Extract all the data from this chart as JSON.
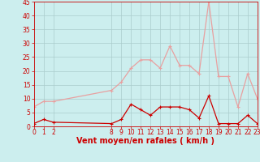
{
  "hours": [
    0,
    1,
    2,
    8,
    9,
    10,
    11,
    12,
    13,
    14,
    15,
    16,
    17,
    18,
    19,
    20,
    21,
    22,
    23
  ],
  "vent_moyen": [
    1,
    2.5,
    1.5,
    1,
    2.5,
    8,
    6,
    4,
    7,
    7,
    7,
    6,
    3,
    11,
    1,
    1,
    1,
    4,
    1
  ],
  "vent_rafales": [
    7,
    9,
    9,
    13,
    16,
    21,
    24,
    24,
    21,
    29,
    22,
    22,
    19,
    45,
    18,
    18,
    7,
    19,
    10
  ],
  "xlabel": "Vent moyen/en rafales ( km/h )",
  "xlim_min": 0,
  "xlim_max": 23,
  "ylim_min": 0,
  "ylim_max": 45,
  "yticks": [
    0,
    5,
    10,
    15,
    20,
    25,
    30,
    35,
    40,
    45
  ],
  "xtick_positions": [
    0,
    1,
    2,
    8,
    9,
    10,
    11,
    12,
    13,
    14,
    15,
    16,
    17,
    18,
    19,
    20,
    21,
    22,
    23
  ],
  "xtick_labels": [
    "0",
    "1",
    "2",
    "8",
    "9",
    "10",
    "11",
    "12",
    "13",
    "14",
    "15",
    "16",
    "17",
    "18",
    "19",
    "20",
    "21",
    "22",
    "23"
  ],
  "color_moyen": "#cc0000",
  "color_rafales": "#e8a0a0",
  "bg_color": "#cceeee",
  "grid_color": "#aacccc",
  "text_color": "#cc0000",
  "marker_size": 2.5,
  "linewidth": 0.9,
  "tick_fontsize": 5.5,
  "xlabel_fontsize": 7
}
